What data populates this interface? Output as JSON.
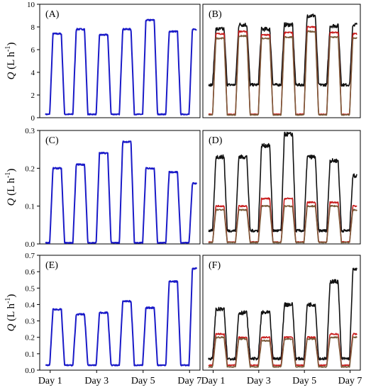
{
  "chart_data": [
    {
      "panel": "(A)",
      "type": "line",
      "ylabel": "Q (L h-1)",
      "ylabel_parts": {
        "italic": "Q",
        "open": " (L h",
        "sup": "-1",
        "close": ")"
      },
      "ylim": [
        0,
        10
      ],
      "yticks": [
        "0",
        "2",
        "4",
        "6",
        "8",
        "10"
      ],
      "yticks_v": [
        0,
        2,
        4,
        6,
        8,
        10
      ],
      "xticks": [],
      "colors": {
        "main": "#1a1ac8"
      },
      "series": [
        {
          "color": "#1a1ac8",
          "min": 0.3,
          "peaks": [
            7.4,
            7.8,
            7.3,
            7.8,
            8.6,
            7.6,
            7.8
          ],
          "double_last": true
        }
      ]
    },
    {
      "panel": "(B)",
      "type": "line",
      "ylim": [
        0,
        10
      ],
      "yticks": [],
      "xticks": [],
      "series": [
        {
          "color": "#111111",
          "min": 2.9,
          "peaks": [
            7.8,
            8.2,
            7.8,
            8.2,
            9.0,
            8.1,
            8.2
          ]
        },
        {
          "color": "#c81e1e",
          "min": 0.3,
          "peaks": [
            7.4,
            7.6,
            7.3,
            7.5,
            8.0,
            7.5,
            7.4
          ]
        },
        {
          "color": "#7a5a3a",
          "min": 0.25,
          "peaks": [
            7.0,
            7.2,
            7.0,
            7.1,
            7.6,
            7.1,
            7.0
          ]
        }
      ]
    },
    {
      "panel": "(C)",
      "type": "line",
      "ylabel": "Q (L h-1)",
      "ylabel_parts": {
        "italic": "Q",
        "open": " (L h",
        "sup": "-1",
        "close": ")"
      },
      "ylim": [
        0,
        0.3
      ],
      "yticks": [
        "0.0",
        "0.1",
        "0.2",
        "0.3"
      ],
      "yticks_v": [
        0,
        0.1,
        0.2,
        0.3
      ],
      "xticks": [],
      "series": [
        {
          "color": "#1a1ac8",
          "min": 0.003,
          "peaks": [
            0.2,
            0.21,
            0.24,
            0.27,
            0.2,
            0.19,
            0.16
          ]
        }
      ]
    },
    {
      "panel": "(D)",
      "type": "line",
      "ylim": [
        0,
        0.3
      ],
      "yticks": [],
      "xticks": [],
      "series": [
        {
          "color": "#111111",
          "min": 0.035,
          "peaks": [
            0.23,
            0.23,
            0.26,
            0.29,
            0.23,
            0.22,
            0.18
          ]
        },
        {
          "color": "#c81e1e",
          "min": 0.005,
          "peaks": [
            0.1,
            0.1,
            0.12,
            0.12,
            0.11,
            0.11,
            0.1
          ]
        },
        {
          "color": "#7a5a3a",
          "min": 0.004,
          "peaks": [
            0.09,
            0.09,
            0.1,
            0.1,
            0.1,
            0.1,
            0.09
          ]
        }
      ]
    },
    {
      "panel": "(E)",
      "type": "line",
      "ylabel": "Q (L h-1)",
      "ylabel_parts": {
        "italic": "Q",
        "open": " (L h",
        "sup": "-1",
        "close": ")"
      },
      "ylim": [
        0,
        0.7
      ],
      "yticks": [
        "0.0",
        "0.1",
        "0.2",
        "0.3",
        "0.4",
        "0.5",
        "0.6",
        "0.7"
      ],
      "yticks_v": [
        0,
        0.1,
        0.2,
        0.3,
        0.4,
        0.5,
        0.6,
        0.7
      ],
      "xticks": [
        "Day 1",
        "Day 3",
        "Day 5",
        "Day 7"
      ],
      "xticks_v": [
        1,
        3,
        5,
        7
      ],
      "series": [
        {
          "color": "#1a1ac8",
          "min": 0.03,
          "peaks": [
            0.37,
            0.34,
            0.35,
            0.42,
            0.38,
            0.54,
            0.62
          ]
        }
      ]
    },
    {
      "panel": "(F)",
      "type": "line",
      "ylim": [
        0,
        0.7
      ],
      "yticks": [],
      "xticks": [
        "Day 1",
        "Day 3",
        "Day 5",
        "Day 7"
      ],
      "xticks_v": [
        1,
        3,
        5,
        7
      ],
      "series": [
        {
          "color": "#111111",
          "min": 0.07,
          "peaks": [
            0.37,
            0.35,
            0.35,
            0.4,
            0.4,
            0.54,
            0.61
          ]
        },
        {
          "color": "#c81e1e",
          "min": 0.03,
          "peaks": [
            0.22,
            0.2,
            0.2,
            0.2,
            0.2,
            0.22,
            0.22
          ]
        },
        {
          "color": "#7a5a3a",
          "min": 0.02,
          "peaks": [
            0.2,
            0.19,
            0.18,
            0.19,
            0.19,
            0.2,
            0.2
          ]
        }
      ]
    }
  ]
}
